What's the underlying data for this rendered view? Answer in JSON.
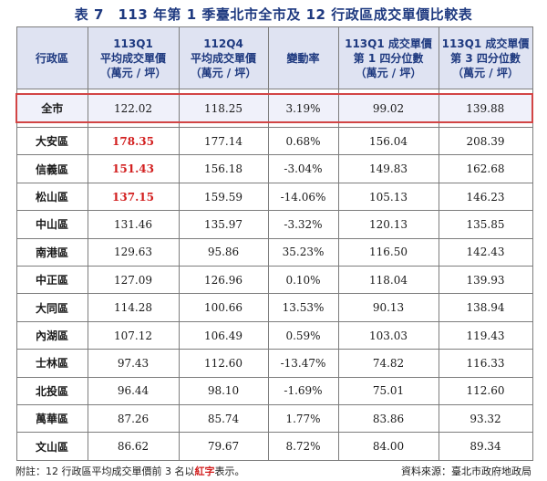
{
  "title": "表 7　113 年第 1 季臺北市全市及 12 行政區成交單價比較表",
  "headers": {
    "col1": "行政區",
    "col2": [
      "113Q1",
      "平均成交單價",
      "（萬元 / 坪）"
    ],
    "col3": [
      "112Q4",
      "平均成交單價",
      "（萬元 / 坪）"
    ],
    "col4": "變動率",
    "col5": [
      "113Q1 成交單價",
      "第 1 四分位數",
      "（萬元 / 坪）"
    ],
    "col6": [
      "113Q1 成交單價",
      "第 3 四分位數",
      "（萬元 / 坪）"
    ]
  },
  "city_row": {
    "name": "全市",
    "q1": "122.02",
    "q4": "118.25",
    "change": "3.19%",
    "p25": "99.02",
    "p75": "139.88"
  },
  "rows": [
    {
      "name": "大安區",
      "q1": "178.35",
      "q4": "177.14",
      "change": "0.68%",
      "p25": "156.04",
      "p75": "208.39"
    },
    {
      "name": "信義區",
      "q1": "151.43",
      "q4": "156.18",
      "change": "-3.04%",
      "p25": "149.83",
      "p75": "162.68"
    },
    {
      "name": "松山區",
      "q1": "137.15",
      "q4": "159.59",
      "change": "-14.06%",
      "p25": "105.13",
      "p75": "146.23"
    },
    {
      "name": "中山區",
      "q1": "131.46",
      "q4": "135.97",
      "change": "-3.32%",
      "p25": "120.13",
      "p75": "135.85"
    },
    {
      "name": "南港區",
      "q1": "129.63",
      "q4": "95.86",
      "change": "35.23%",
      "p25": "116.50",
      "p75": "142.43"
    },
    {
      "name": "中正區",
      "q1": "127.09",
      "q4": "126.96",
      "change": "0.10%",
      "p25": "118.04",
      "p75": "139.93"
    },
    {
      "name": "大同區",
      "q1": "114.28",
      "q4": "100.66",
      "change": "13.53%",
      "p25": "90.13",
      "p75": "138.94"
    },
    {
      "name": "內湖區",
      "q1": "107.12",
      "q4": "106.49",
      "change": "0.59%",
      "p25": "103.03",
      "p75": "119.43"
    },
    {
      "name": "士林區",
      "q1": "97.43",
      "q4": "112.60",
      "change": "-13.47%",
      "p25": "74.82",
      "p75": "116.33"
    },
    {
      "name": "北投區",
      "q1": "96.44",
      "q4": "98.10",
      "change": "-1.69%",
      "p25": "75.01",
      "p75": "112.60"
    },
    {
      "name": "萬華區",
      "q1": "87.26",
      "q4": "85.74",
      "change": "1.77%",
      "p25": "83.86",
      "p75": "93.32"
    },
    {
      "name": "文山區",
      "q1": "86.62",
      "q4": "79.67",
      "change": "8.72%",
      "p25": "84.00",
      "p75": "89.34"
    }
  ],
  "footer": {
    "note_prefix": "附註：12 行政區平均成交單價前 3 名以",
    "note_red": "紅字",
    "note_suffix": "表示。",
    "source": "資料來源：臺北市政府地政局"
  },
  "colors": {
    "title": "#1f3a80",
    "header_bg": "#dfe3f2",
    "highlight": "#d21f1f",
    "city_border": "#d24545"
  }
}
